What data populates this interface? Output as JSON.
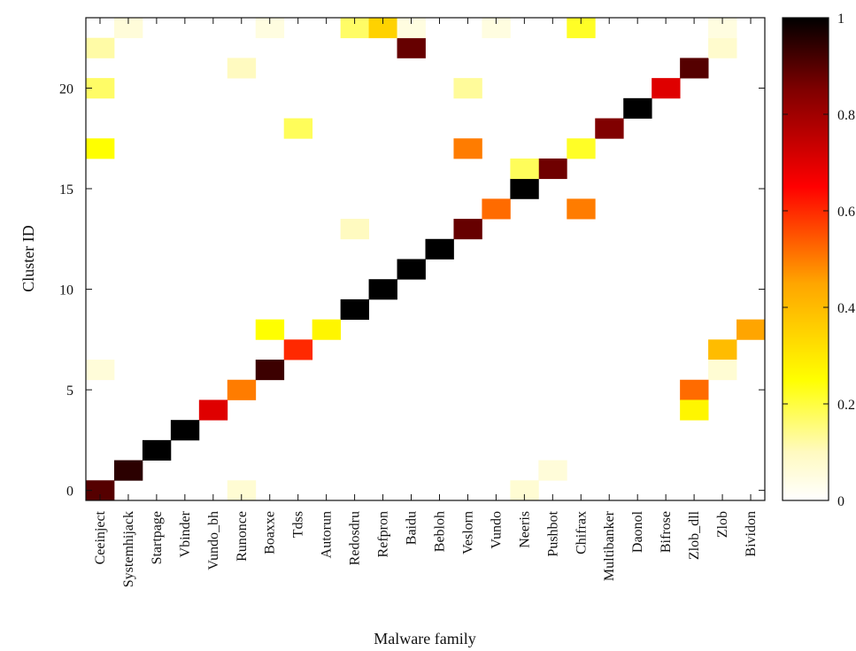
{
  "chart_data": {
    "type": "heatmap",
    "xlabel": "Malware family",
    "ylabel": "Cluster ID",
    "x_categories": [
      "Ceeinject",
      "Systemhijack",
      "Startpage",
      "Vbinder",
      "Vundo_bh",
      "Runonce",
      "Boaxxe",
      "Tdss",
      "Autorun",
      "Redosdru",
      "Refpron",
      "Baidu",
      "Bebloh",
      "Veslorn",
      "Vundo",
      "Neeris",
      "Pushbot",
      "Chifrax",
      "Multibanker",
      "Daonol",
      "Bifrose",
      "Zlob_dll",
      "Zlob",
      "Bividon"
    ],
    "y_range": [
      0,
      23
    ],
    "y_ticks": [
      0,
      5,
      10,
      15,
      20
    ],
    "colorbar": {
      "range": [
        0,
        1
      ],
      "ticks": [
        0,
        0.2,
        0.4,
        0.6,
        0.8,
        1
      ],
      "tick_labels": [
        "0",
        "0.2",
        "0.4",
        "0.6",
        "0.8",
        "1"
      ]
    },
    "colorscale": [
      [
        0.0,
        "#ffffff"
      ],
      [
        0.1,
        "#fffac0"
      ],
      [
        0.25,
        "#ffff00"
      ],
      [
        0.45,
        "#ffa500"
      ],
      [
        0.65,
        "#ff0000"
      ],
      [
        0.85,
        "#800000"
      ],
      [
        1.0,
        "#000000"
      ]
    ],
    "cells": [
      {
        "x": "Ceeinject",
        "y": 0,
        "value": 0.9
      },
      {
        "x": "Systemhijack",
        "y": 1,
        "value": 0.95
      },
      {
        "x": "Startpage",
        "y": 2,
        "value": 1.0
      },
      {
        "x": "Vbinder",
        "y": 3,
        "value": 1.0
      },
      {
        "x": "Vundo_bh",
        "y": 4,
        "value": 0.7
      },
      {
        "x": "Runonce",
        "y": 5,
        "value": 0.5
      },
      {
        "x": "Boaxxe",
        "y": 6,
        "value": 0.93
      },
      {
        "x": "Tdss",
        "y": 7,
        "value": 0.6
      },
      {
        "x": "Redosdru",
        "y": 9,
        "value": 1.0
      },
      {
        "x": "Refpron",
        "y": 10,
        "value": 1.0
      },
      {
        "x": "Baidu",
        "y": 11,
        "value": 1.0
      },
      {
        "x": "Bebloh",
        "y": 12,
        "value": 1.0
      },
      {
        "x": "Veslorn",
        "y": 13,
        "value": 0.88
      },
      {
        "x": "Vundo",
        "y": 14,
        "value": 0.52
      },
      {
        "x": "Neeris",
        "y": 15,
        "value": 1.0
      },
      {
        "x": "Pushbot",
        "y": 16,
        "value": 0.87
      },
      {
        "x": "Multibanker",
        "y": 18,
        "value": 0.85
      },
      {
        "x": "Daonol",
        "y": 19,
        "value": 1.0
      },
      {
        "x": "Bifrose",
        "y": 20,
        "value": 0.7
      },
      {
        "x": "Zlob_dll",
        "y": 21,
        "value": 0.9
      },
      {
        "x": "Boaxxe",
        "y": 8,
        "value": 0.25
      },
      {
        "x": "Autorun",
        "y": 8,
        "value": 0.27
      },
      {
        "x": "Bividon",
        "y": 8,
        "value": 0.45
      },
      {
        "x": "Zlob",
        "y": 7,
        "value": 0.4
      },
      {
        "x": "Zlob",
        "y": 6,
        "value": 0.07
      },
      {
        "x": "Zlob_dll",
        "y": 5,
        "value": 0.52
      },
      {
        "x": "Zlob_dll",
        "y": 4,
        "value": 0.27
      },
      {
        "x": "Ceeinject",
        "y": 6,
        "value": 0.06
      },
      {
        "x": "Runonce",
        "y": 0,
        "value": 0.07
      },
      {
        "x": "Neeris",
        "y": 0,
        "value": 0.07
      },
      {
        "x": "Pushbot",
        "y": 1,
        "value": 0.06
      },
      {
        "x": "Redosdru",
        "y": 13,
        "value": 0.1
      },
      {
        "x": "Chifrax",
        "y": 14,
        "value": 0.5
      },
      {
        "x": "Neeris",
        "y": 16,
        "value": 0.18
      },
      {
        "x": "Chifrax",
        "y": 17,
        "value": 0.22
      },
      {
        "x": "Veslorn",
        "y": 17,
        "value": 0.5
      },
      {
        "x": "Ceeinject",
        "y": 17,
        "value": 0.25
      },
      {
        "x": "Tdss",
        "y": 18,
        "value": 0.18
      },
      {
        "x": "Ceeinject",
        "y": 20,
        "value": 0.17
      },
      {
        "x": "Veslorn",
        "y": 20,
        "value": 0.13
      },
      {
        "x": "Runonce",
        "y": 21,
        "value": 0.1
      },
      {
        "x": "Ceeinject",
        "y": 22,
        "value": 0.12
      },
      {
        "x": "Baidu",
        "y": 22,
        "value": 0.88
      },
      {
        "x": "Zlob",
        "y": 22,
        "value": 0.08
      },
      {
        "x": "Systemhijack",
        "y": 23,
        "value": 0.06
      },
      {
        "x": "Boaxxe",
        "y": 23,
        "value": 0.05
      },
      {
        "x": "Redosdru",
        "y": 23,
        "value": 0.17
      },
      {
        "x": "Refpron",
        "y": 23,
        "value": 0.35
      },
      {
        "x": "Baidu",
        "y": 23,
        "value": 0.05
      },
      {
        "x": "Vundo",
        "y": 23,
        "value": 0.05
      },
      {
        "x": "Chifrax",
        "y": 23,
        "value": 0.22
      },
      {
        "x": "Zlob",
        "y": 23,
        "value": 0.05
      }
    ]
  }
}
